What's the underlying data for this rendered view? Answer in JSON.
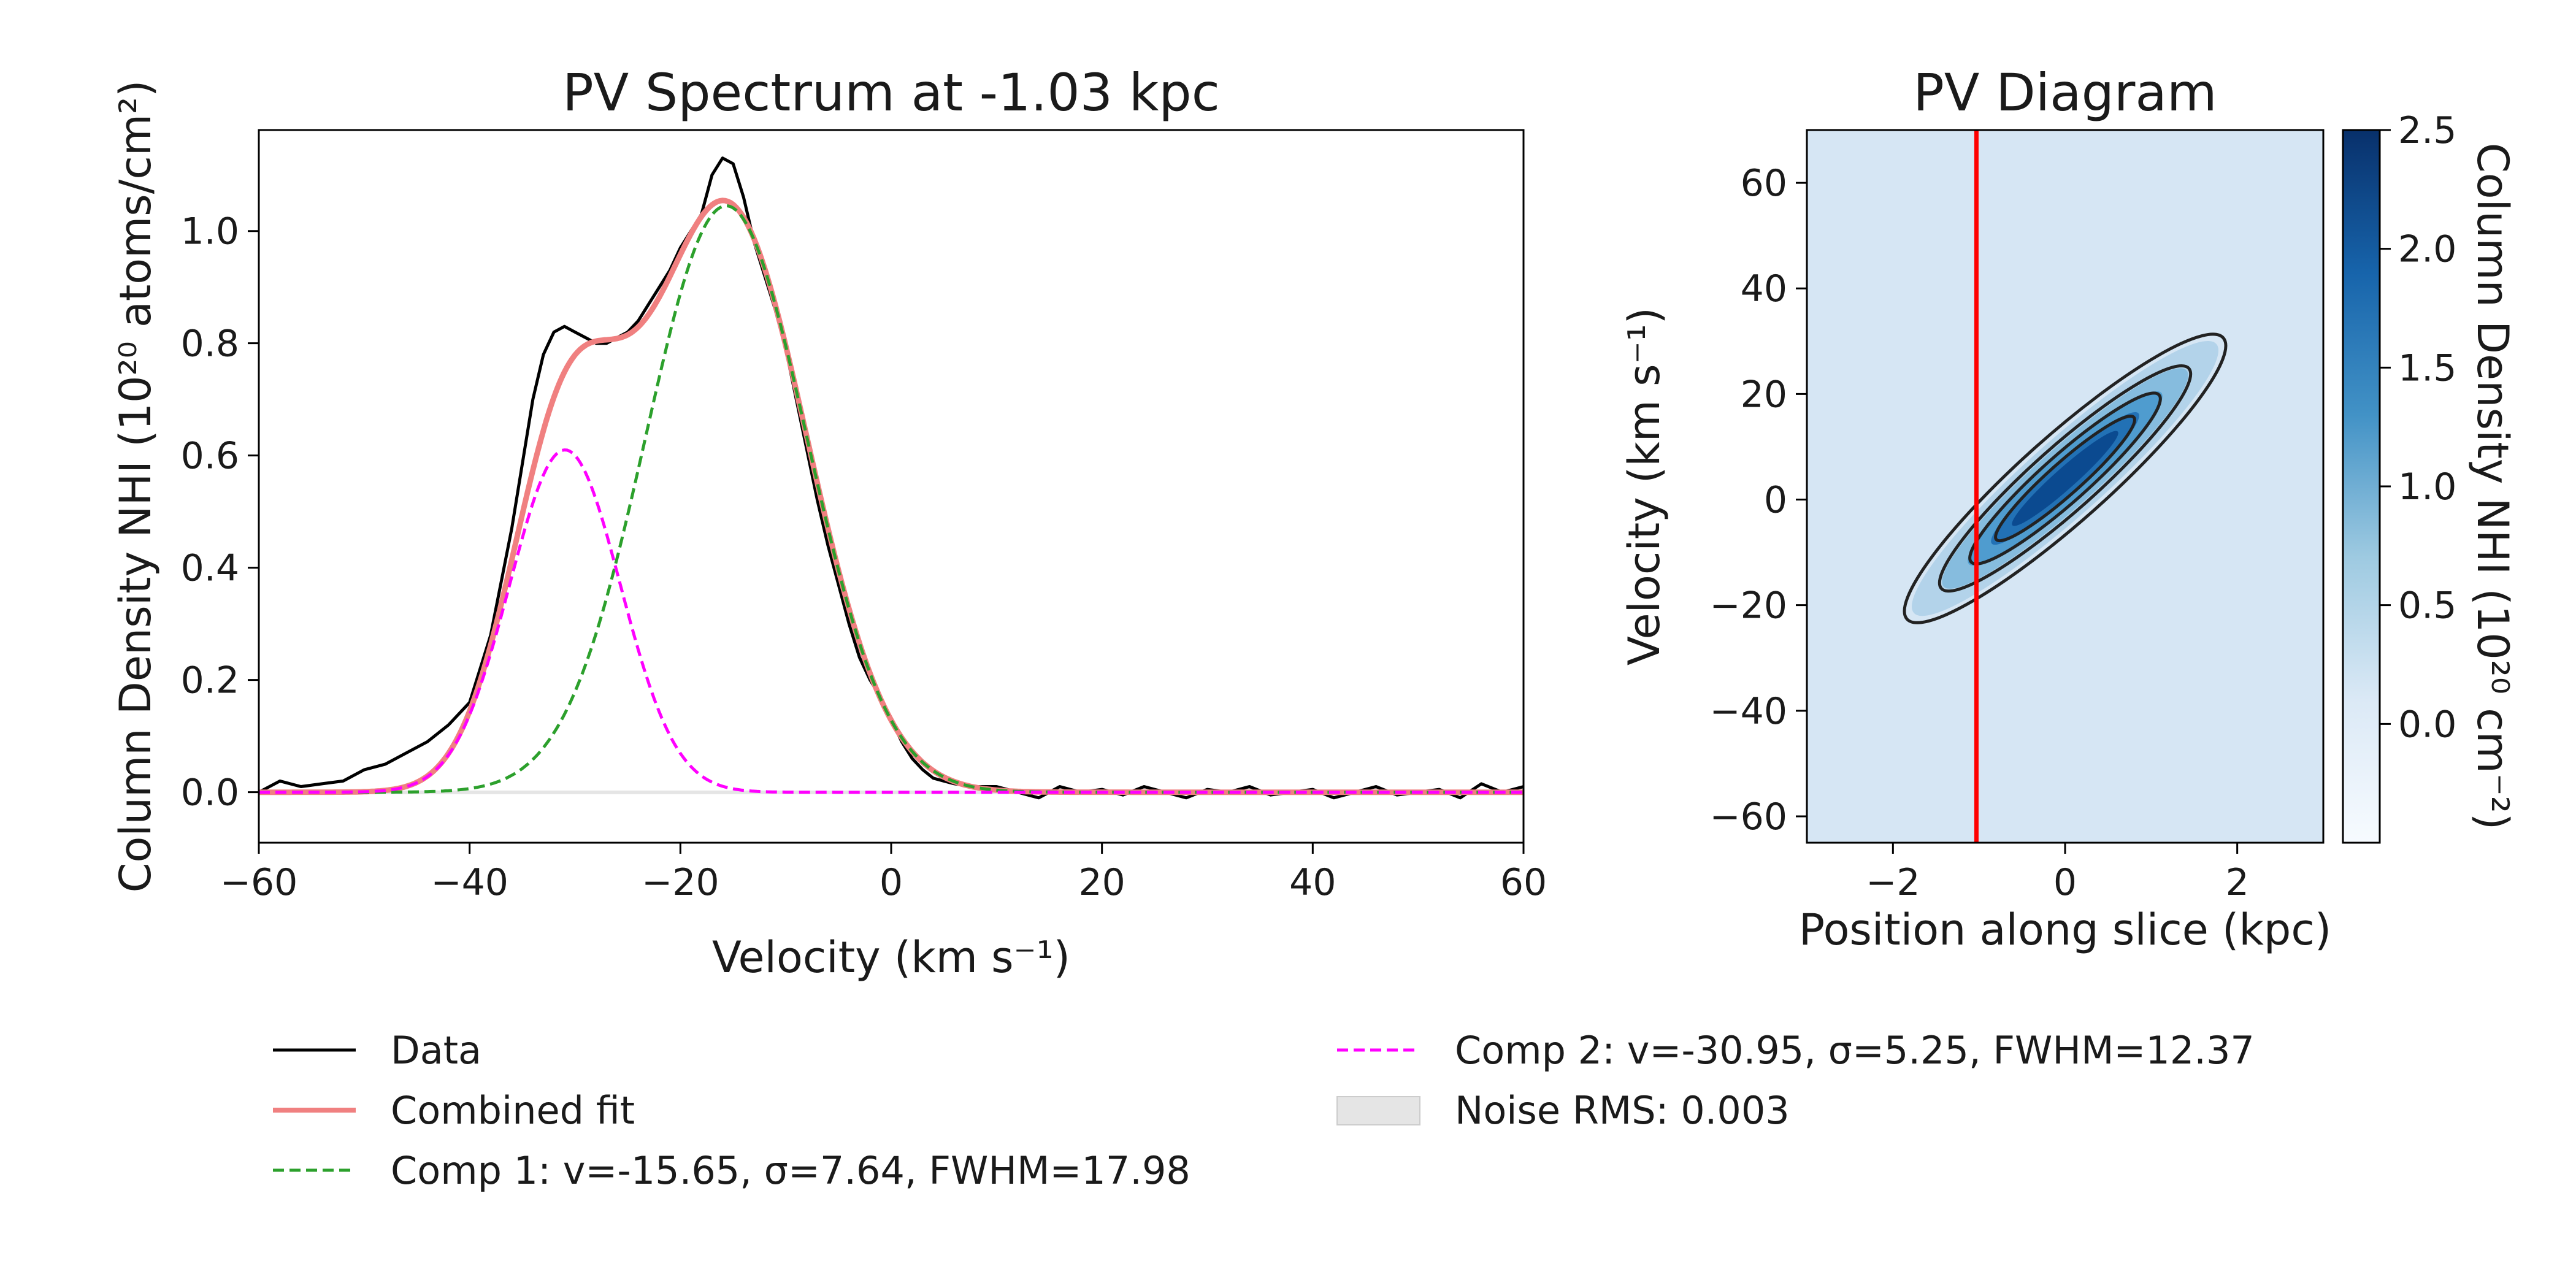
{
  "chart_data": [
    {
      "type": "line",
      "title": "PV Spectrum at -1.03 kpc",
      "xlabel": "Velocity (km s⁻¹)",
      "ylabel": "Column Density NHI (10²⁰ atoms/cm²)",
      "xlim": [
        -60,
        60
      ],
      "ylim": [
        -0.09,
        1.18
      ],
      "xticks": [
        -60,
        -40,
        -20,
        0,
        20,
        40,
        60
      ],
      "xtick_labels": [
        "−60",
        "−40",
        "−20",
        "0",
        "20",
        "40",
        "60"
      ],
      "yticks": [
        0.0,
        0.2,
        0.4,
        0.6,
        0.8,
        1.0
      ],
      "ytick_labels": [
        "0.0",
        "0.2",
        "0.4",
        "0.6",
        "0.8",
        "1.0"
      ],
      "components": [
        {
          "name": "Comp 1",
          "amplitude": 1.045,
          "center": -15.65,
          "sigma": 7.64,
          "fwhm": 17.98,
          "color": "#2ca02c"
        },
        {
          "name": "Comp 2",
          "amplitude": 0.61,
          "center": -30.95,
          "sigma": 5.25,
          "fwhm": 12.37,
          "color": "#ff00ff"
        }
      ],
      "noise_rms": 0.003,
      "data_x": [
        -60,
        -58,
        -56,
        -54,
        -52,
        -50,
        -48,
        -46,
        -44,
        -42,
        -40,
        -38,
        -36,
        -34,
        -33,
        -32,
        -31,
        -30,
        -29,
        -28,
        -27,
        -26,
        -25,
        -24,
        -23,
        -22,
        -21,
        -20,
        -19,
        -18,
        -17,
        -16,
        -15,
        -14,
        -13,
        -12,
        -11,
        -10,
        -9,
        -8,
        -7,
        -6,
        -5,
        -4,
        -3,
        -2,
        -1,
        0,
        1,
        2,
        3,
        4,
        5,
        6,
        8,
        10,
        12,
        14,
        16,
        18,
        20,
        22,
        24,
        26,
        28,
        30,
        32,
        34,
        36,
        38,
        40,
        42,
        44,
        46,
        48,
        50,
        52,
        54,
        56,
        58,
        60
      ],
      "data_y": [
        0.0,
        0.02,
        0.01,
        0.015,
        0.02,
        0.04,
        0.05,
        0.07,
        0.09,
        0.12,
        0.16,
        0.28,
        0.47,
        0.7,
        0.78,
        0.82,
        0.83,
        0.82,
        0.81,
        0.8,
        0.8,
        0.81,
        0.82,
        0.84,
        0.87,
        0.9,
        0.93,
        0.97,
        1.0,
        1.03,
        1.1,
        1.13,
        1.12,
        1.06,
        0.98,
        0.92,
        0.86,
        0.79,
        0.7,
        0.61,
        0.52,
        0.44,
        0.37,
        0.3,
        0.24,
        0.2,
        0.17,
        0.13,
        0.09,
        0.06,
        0.04,
        0.025,
        0.02,
        0.015,
        0.01,
        0.01,
        0.0,
        -0.01,
        0.01,
        0.0,
        0.005,
        -0.005,
        0.01,
        0.0,
        -0.01,
        0.005,
        0.0,
        0.01,
        -0.005,
        0.0,
        0.005,
        -0.01,
        0.0,
        0.01,
        -0.005,
        0.0,
        0.005,
        -0.01,
        0.015,
        0.0,
        0.01
      ],
      "legend": {
        "position": "bottom",
        "items": [
          {
            "label": "Data",
            "color": "#000000",
            "style": "solid"
          },
          {
            "label": "Combined fit",
            "color": "#f08080",
            "style": "solid"
          },
          {
            "label": "Comp 1: v=-15.65, σ=7.64, FWHM=17.98",
            "color": "#2ca02c",
            "style": "dashed"
          },
          {
            "label": "Comp 2: v=-30.95, σ=5.25, FWHM=12.37",
            "color": "#ff00ff",
            "style": "dashed"
          },
          {
            "label": "Noise RMS: 0.003",
            "color": "#e5e5e5",
            "style": "patch"
          }
        ]
      }
    },
    {
      "type": "heatmap",
      "title": "PV Diagram",
      "xlabel": "Position along slice (kpc)",
      "ylabel": "Velocity (km s⁻¹)",
      "xlim": [
        -3,
        3
      ],
      "ylim": [
        -65,
        70
      ],
      "xticks": [
        -2,
        0,
        2
      ],
      "xtick_labels": [
        "−2",
        "0",
        "2"
      ],
      "yticks": [
        -60,
        -40,
        -20,
        0,
        20,
        40,
        60
      ],
      "ytick_labels": [
        "−60",
        "−40",
        "−20",
        "0",
        "20",
        "40",
        "60"
      ],
      "slice_position": -1.03,
      "slice_color": "#ff0000",
      "colorbar": {
        "label": "Column Density NHI (10²⁰ cm⁻²)",
        "range": [
          -0.5,
          2.5
        ],
        "ticks": [
          0.0,
          0.5,
          1.0,
          1.5,
          2.0,
          2.5
        ],
        "tick_labels": [
          "0.0",
          "0.5",
          "1.0",
          "1.5",
          "2.0",
          "2.5"
        ],
        "cmap": "Blues"
      },
      "ridge": {
        "velocity_per_kpc": 14.5,
        "velocity_offset": 4
      },
      "contour_levels": [
        0.5,
        1.0,
        1.5,
        2.0
      ]
    }
  ]
}
